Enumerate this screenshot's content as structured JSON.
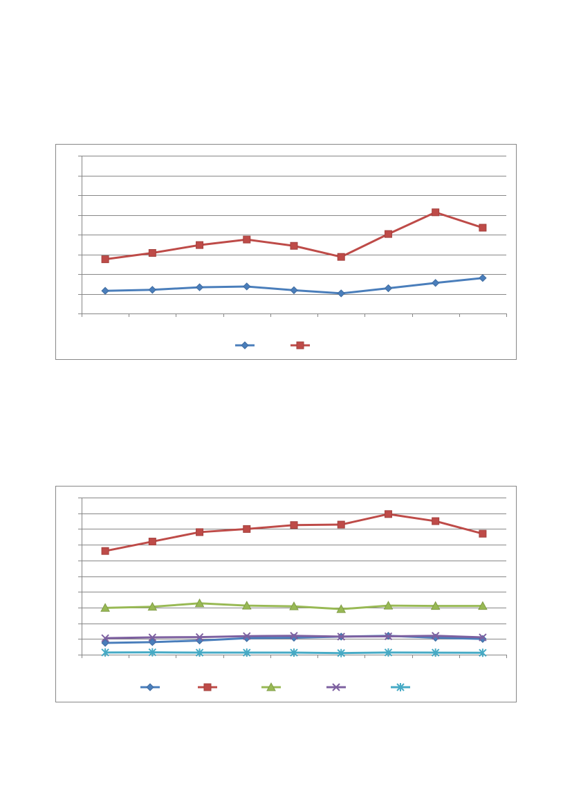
{
  "chart_data": [
    {
      "type": "line",
      "categories": [
        "",
        "",
        "",
        "",
        "",
        "",
        "",
        "",
        ""
      ],
      "ylim": [
        0,
        8
      ],
      "grid": true,
      "legend": "bottom",
      "series": [
        {
          "values": [
            1.15,
            1.2,
            1.33,
            1.37,
            1.18,
            1.02,
            1.28,
            1.55,
            1.8
          ],
          "color": "#4a7ebb",
          "marker": "diamond"
        },
        {
          "values": [
            2.75,
            3.07,
            3.47,
            3.75,
            3.43,
            2.87,
            4.03,
            5.13,
            4.35
          ],
          "color": "#be4b48",
          "marker": "square"
        }
      ]
    },
    {
      "type": "line",
      "categories": [
        "",
        "",
        "",
        "",
        "",
        "",
        "",
        "",
        ""
      ],
      "ylim": [
        0,
        10
      ],
      "grid": true,
      "legend": "bottom",
      "series": [
        {
          "values": [
            0.75,
            0.8,
            0.9,
            1.05,
            1.08,
            1.15,
            1.2,
            1.08,
            1.0
          ],
          "color": "#4a7ebb",
          "marker": "diamond"
        },
        {
          "values": [
            6.6,
            7.2,
            7.8,
            8.0,
            8.25,
            8.28,
            8.95,
            8.5,
            7.7
          ],
          "color": "#be4b48",
          "marker": "square"
        },
        {
          "values": [
            2.98,
            3.05,
            3.27,
            3.12,
            3.08,
            2.9,
            3.12,
            3.1,
            3.1
          ],
          "color": "#98b954",
          "marker": "triangle"
        },
        {
          "values": [
            1.05,
            1.1,
            1.12,
            1.18,
            1.2,
            1.15,
            1.17,
            1.2,
            1.1
          ],
          "color": "#7d60a0",
          "marker": "x"
        },
        {
          "values": [
            0.14,
            0.15,
            0.13,
            0.13,
            0.13,
            0.1,
            0.14,
            0.13,
            0.12
          ],
          "color": "#46aac5",
          "marker": "star"
        }
      ]
    }
  ]
}
